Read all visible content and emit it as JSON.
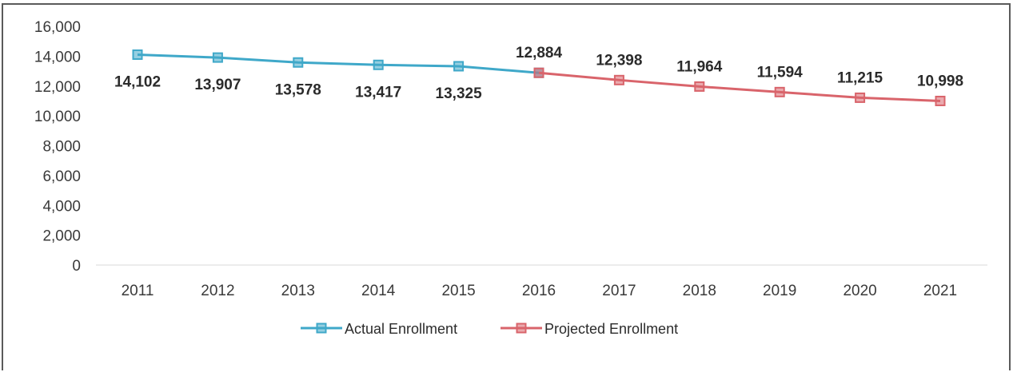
{
  "chart_data": {
    "type": "line",
    "title": "",
    "xlabel": "",
    "ylabel": "",
    "ylim": [
      0,
      16000
    ],
    "y_ticks": [
      "0",
      "2,000",
      "4,000",
      "6,000",
      "8,000",
      "10,000",
      "12,000",
      "14,000",
      "16,000"
    ],
    "categories": [
      "2011",
      "2012",
      "2013",
      "2014",
      "2015",
      "2016",
      "2017",
      "2018",
      "2019",
      "2020",
      "2021"
    ],
    "series": [
      {
        "name": "Actual Enrollment",
        "color": "#3fa8c9",
        "x": [
          "2011",
          "2012",
          "2013",
          "2014",
          "2015",
          "2016"
        ],
        "values": [
          14102,
          13907,
          13578,
          13417,
          13325,
          12884
        ],
        "labels": [
          "14,102",
          "13,907",
          "13,578",
          "13,417",
          "13,325",
          ""
        ]
      },
      {
        "name": "Projected Enrollment",
        "color": "#d9646b",
        "x": [
          "2016",
          "2017",
          "2018",
          "2019",
          "2020",
          "2021"
        ],
        "values": [
          12884,
          12398,
          11964,
          11594,
          11215,
          10998
        ],
        "labels": [
          "12,884",
          "12,398",
          "11,964",
          "11,594",
          "11,215",
          "10,998"
        ]
      }
    ],
    "grid": false,
    "legend_position": "bottom"
  }
}
